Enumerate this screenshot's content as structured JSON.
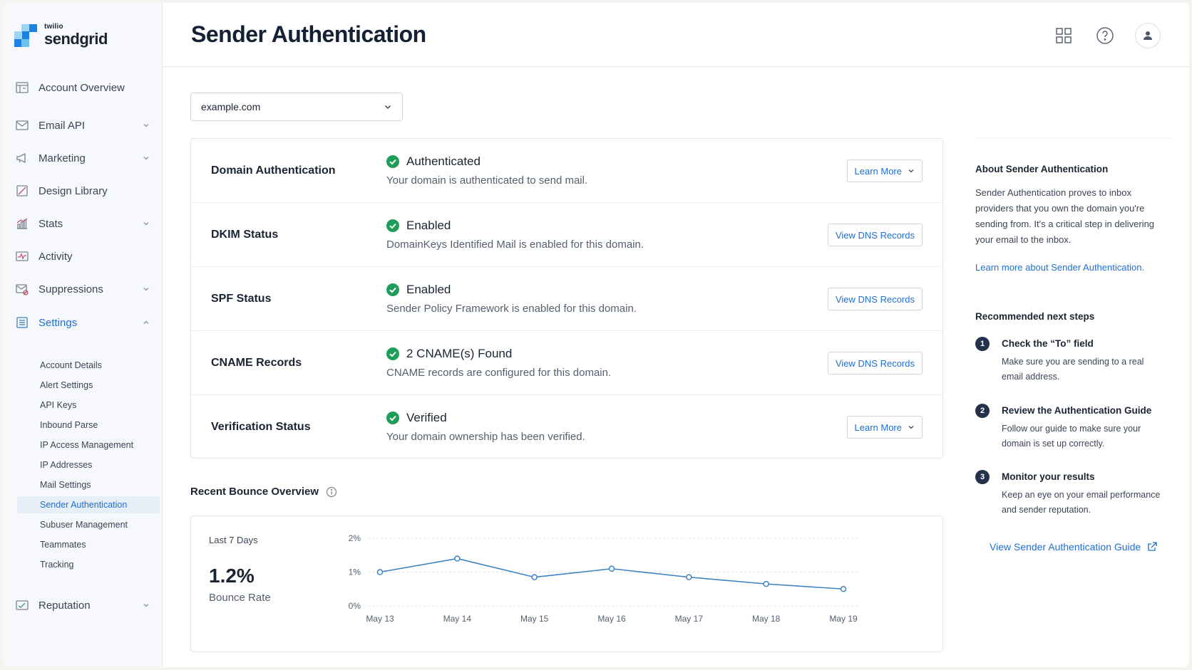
{
  "brand": {
    "top": "twilio",
    "name": "sendgrid"
  },
  "header": {
    "title": "Sender Authentication",
    "icons": [
      "apps-grid-icon",
      "help-icon",
      "user-icon"
    ]
  },
  "sidebar": {
    "items": [
      {
        "label": "Account Overview",
        "icon": "account-overview-icon",
        "expandable": false
      },
      {
        "label": "Email API",
        "icon": "email-icon",
        "expandable": true
      },
      {
        "label": "Marketing",
        "icon": "megaphone-icon",
        "expandable": true
      },
      {
        "label": "Design Library",
        "icon": "design-icon",
        "expandable": false
      },
      {
        "label": "Stats",
        "icon": "stats-icon",
        "expandable": true
      },
      {
        "label": "Activity",
        "icon": "activity-icon",
        "expandable": false
      },
      {
        "label": "Suppressions",
        "icon": "suppressions-icon",
        "expandable": true
      },
      {
        "label": "Settings",
        "icon": "settings-icon",
        "expandable": true,
        "expanded": true
      },
      {
        "label": "Reputation",
        "icon": "reputation-icon",
        "expandable": true
      }
    ],
    "settings_sub": [
      "Account Details",
      "Alert Settings",
      "API Keys",
      "Inbound Parse",
      "IP Access Management",
      "IP Addresses",
      "Mail Settings",
      "Sender Authentication",
      "Subuser Management",
      "Teammates",
      "Tracking"
    ],
    "active_sub": "Sender Authentication"
  },
  "domain_select": {
    "value": "example.com"
  },
  "status_rows": [
    {
      "title": "Domain Authentication",
      "status": "Authenticated",
      "desc": "Your domain is authenticated to send mail.",
      "button": "Learn More",
      "dropdown": true
    },
    {
      "title": "DKIM Status",
      "status": "Enabled",
      "desc": "DomainKeys Identified Mail is enabled for this domain.",
      "button": "View DNS Records",
      "dropdown": false
    },
    {
      "title": "SPF Status",
      "status": "Enabled",
      "desc": "Sender Policy Framework is enabled for this domain.",
      "button": "View DNS Records",
      "dropdown": false
    },
    {
      "title": "CNAME Records",
      "status": "2 CNAME(s) Found",
      "desc": "CNAME records are configured for this domain.",
      "button": "View DNS Records",
      "dropdown": false
    },
    {
      "title": "Verification Status",
      "status": "Verified",
      "desc": "Your domain ownership has been verified.",
      "button": "Learn More",
      "dropdown": true
    }
  ],
  "bounce": {
    "title": "Recent Bounce Overview",
    "period": "Last 7 Days",
    "rate": "1.2%",
    "rate_label": "Bounce Rate"
  },
  "chart_data": {
    "type": "line",
    "categories": [
      "May 13",
      "May 14",
      "May 15",
      "May 16",
      "May 17",
      "May 18",
      "May 19"
    ],
    "values": [
      1.0,
      1.4,
      0.85,
      1.1,
      0.85,
      0.65,
      0.5
    ],
    "y_ticks": [
      "2%",
      "1%",
      "0%"
    ],
    "ylim": [
      0,
      2
    ],
    "grid": true,
    "color": "#3b82c4"
  },
  "about": {
    "heading": "About Sender Authentication",
    "text_lines": [
      "Sender Authentication proves to inbox",
      "providers that you own the domain you're",
      "sending from. It's a critical step in delivering",
      "your email to the inbox."
    ],
    "link": "Learn more about Sender Authentication."
  },
  "next_steps": {
    "heading": "Recommended next steps",
    "steps": [
      {
        "num": "1",
        "title": "Check the “To” field",
        "desc_lines": [
          "Make sure you are sending to a real",
          "email address."
        ]
      },
      {
        "num": "2",
        "title": "Review the Authentication Guide",
        "desc_lines": [
          "Follow our guide to make sure your",
          "domain is set up correctly."
        ]
      },
      {
        "num": "3",
        "title": "Monitor your results",
        "desc_lines": [
          "Keep an eye on your email performance",
          "and sender reputation."
        ]
      }
    ],
    "guide_link": "View Sender Authentication Guide"
  },
  "colors": {
    "accent": "#1f6fd1",
    "success": "#1e9e5a",
    "text": "#1a2433"
  }
}
